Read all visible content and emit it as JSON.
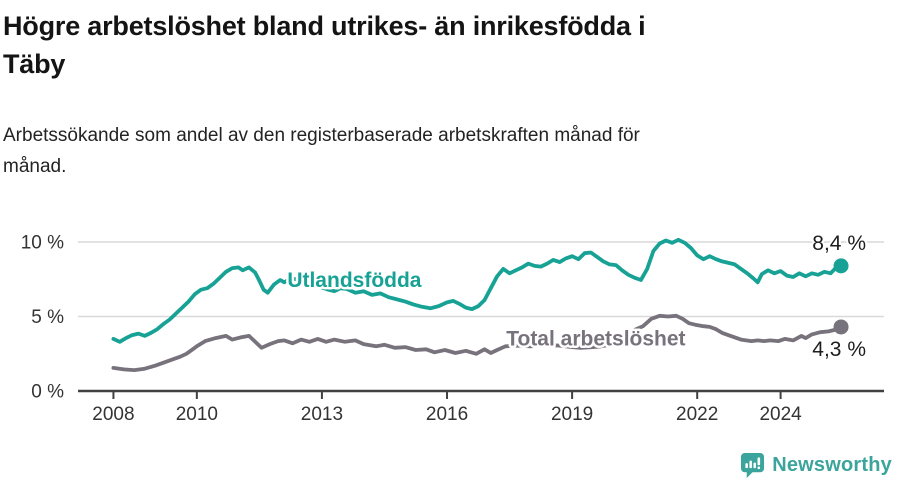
{
  "page": {
    "title": "Högre arbetslöshet bland utrikes- än inrikesfödda i\nTäby",
    "subtitle": "Arbetssökande som andel av den registerbaserade arbetskraften månad för\nmånad."
  },
  "footer": {
    "brand": "Newsworthy",
    "brand_color": "#3ba49d",
    "logo_icon": "bar-chart-speech-bubble-icon"
  },
  "chart_data": {
    "type": "line",
    "title": "Högre arbetslöshet bland utrikes- än inrikesfödda i Täby",
    "subtitle": "Arbetssökande som andel av den registerbaserade arbetskraften månad för månad.",
    "xlabel": "",
    "ylabel": "",
    "x_unit": "year (monthly data)",
    "grid": "horizontal",
    "legend_position": "inline-labels",
    "xlim": [
      2007.15,
      2026.48
    ],
    "ylim": [
      0,
      10.6
    ],
    "axis_color": "#414141",
    "gridline_color": "#d9d9d9",
    "tick_label_color": "#333333",
    "value_label_color": "#1d1d1d",
    "y_ticks": [
      {
        "v": 0,
        "label": "0 %"
      },
      {
        "v": 5,
        "label": "5 %"
      },
      {
        "v": 10,
        "label": "10 %"
      }
    ],
    "x_ticks": [
      {
        "v": 2008,
        "label": "2008"
      },
      {
        "v": 2010,
        "label": "2010"
      },
      {
        "v": 2013,
        "label": "2013"
      },
      {
        "v": 2016,
        "label": "2016"
      },
      {
        "v": 2019,
        "label": "2019"
      },
      {
        "v": 2022,
        "label": "2022"
      },
      {
        "v": 2024,
        "label": "2024"
      }
    ],
    "series": [
      {
        "id": "utlandsfodda",
        "name": "Utlandsfödda",
        "color": "#17a295",
        "end_label": "8,4 %",
        "last_value": 8.4,
        "end_label_above": true,
        "label_t": 2012.17,
        "label_v": 7.5,
        "points": [
          [
            2008.0,
            3.5
          ],
          [
            2008.15,
            3.3
          ],
          [
            2008.3,
            3.55
          ],
          [
            2008.45,
            3.75
          ],
          [
            2008.6,
            3.85
          ],
          [
            2008.75,
            3.7
          ],
          [
            2008.9,
            3.9
          ],
          [
            2009.05,
            4.15
          ],
          [
            2009.2,
            4.5
          ],
          [
            2009.35,
            4.8
          ],
          [
            2009.5,
            5.2
          ],
          [
            2009.65,
            5.6
          ],
          [
            2009.8,
            6.0
          ],
          [
            2009.95,
            6.5
          ],
          [
            2010.1,
            6.8
          ],
          [
            2010.25,
            6.9
          ],
          [
            2010.4,
            7.2
          ],
          [
            2010.55,
            7.6
          ],
          [
            2010.7,
            8.0
          ],
          [
            2010.85,
            8.25
          ],
          [
            2011.0,
            8.3
          ],
          [
            2011.1,
            8.1
          ],
          [
            2011.25,
            8.3
          ],
          [
            2011.4,
            7.95
          ],
          [
            2011.5,
            7.4
          ],
          [
            2011.6,
            6.8
          ],
          [
            2011.7,
            6.6
          ],
          [
            2011.85,
            7.15
          ],
          [
            2012.0,
            7.45
          ],
          [
            2012.1,
            7.3
          ],
          [
            2012.25,
            7.55
          ],
          [
            2012.4,
            7.5
          ],
          [
            2012.55,
            7.35
          ],
          [
            2012.7,
            7.2
          ],
          [
            2012.85,
            7.1
          ],
          [
            2013.0,
            6.95
          ],
          [
            2013.15,
            6.8
          ],
          [
            2013.3,
            6.7
          ],
          [
            2013.45,
            6.9
          ],
          [
            2013.6,
            6.85
          ],
          [
            2013.8,
            6.6
          ],
          [
            2014.0,
            6.7
          ],
          [
            2014.2,
            6.45
          ],
          [
            2014.4,
            6.55
          ],
          [
            2014.6,
            6.3
          ],
          [
            2014.8,
            6.15
          ],
          [
            2015.0,
            6.0
          ],
          [
            2015.2,
            5.8
          ],
          [
            2015.4,
            5.65
          ],
          [
            2015.6,
            5.55
          ],
          [
            2015.8,
            5.7
          ],
          [
            2016.0,
            5.95
          ],
          [
            2016.15,
            6.05
          ],
          [
            2016.3,
            5.85
          ],
          [
            2016.45,
            5.6
          ],
          [
            2016.6,
            5.5
          ],
          [
            2016.75,
            5.7
          ],
          [
            2016.9,
            6.1
          ],
          [
            2017.05,
            6.9
          ],
          [
            2017.2,
            7.7
          ],
          [
            2017.35,
            8.2
          ],
          [
            2017.5,
            7.9
          ],
          [
            2017.65,
            8.1
          ],
          [
            2017.8,
            8.3
          ],
          [
            2017.95,
            8.55
          ],
          [
            2018.1,
            8.4
          ],
          [
            2018.25,
            8.35
          ],
          [
            2018.4,
            8.55
          ],
          [
            2018.55,
            8.8
          ],
          [
            2018.7,
            8.65
          ],
          [
            2018.85,
            8.9
          ],
          [
            2019.0,
            9.05
          ],
          [
            2019.15,
            8.85
          ],
          [
            2019.3,
            9.25
          ],
          [
            2019.45,
            9.3
          ],
          [
            2019.6,
            9.0
          ],
          [
            2019.75,
            8.7
          ],
          [
            2019.9,
            8.5
          ],
          [
            2020.05,
            8.45
          ],
          [
            2020.2,
            8.1
          ],
          [
            2020.35,
            7.8
          ],
          [
            2020.5,
            7.6
          ],
          [
            2020.65,
            7.45
          ],
          [
            2020.8,
            8.2
          ],
          [
            2020.95,
            9.4
          ],
          [
            2021.1,
            9.9
          ],
          [
            2021.25,
            10.1
          ],
          [
            2021.4,
            9.95
          ],
          [
            2021.55,
            10.15
          ],
          [
            2021.7,
            9.95
          ],
          [
            2021.85,
            9.6
          ],
          [
            2022.0,
            9.1
          ],
          [
            2022.15,
            8.85
          ],
          [
            2022.3,
            9.05
          ],
          [
            2022.45,
            8.85
          ],
          [
            2022.6,
            8.7
          ],
          [
            2022.75,
            8.6
          ],
          [
            2022.9,
            8.5
          ],
          [
            2023.05,
            8.2
          ],
          [
            2023.2,
            7.9
          ],
          [
            2023.35,
            7.55
          ],
          [
            2023.45,
            7.3
          ],
          [
            2023.55,
            7.85
          ],
          [
            2023.7,
            8.1
          ],
          [
            2023.85,
            7.9
          ],
          [
            2024.0,
            8.05
          ],
          [
            2024.15,
            7.75
          ],
          [
            2024.3,
            7.65
          ],
          [
            2024.45,
            7.9
          ],
          [
            2024.6,
            7.7
          ],
          [
            2024.75,
            7.9
          ],
          [
            2024.9,
            7.8
          ],
          [
            2025.05,
            8.0
          ],
          [
            2025.2,
            7.9
          ],
          [
            2025.3,
            8.2
          ],
          [
            2025.45,
            8.4
          ]
        ]
      },
      {
        "id": "total",
        "name": "Total arbetslöshet",
        "color": "#77727b",
        "end_label": "4,3 %",
        "last_value": 4.3,
        "end_label_above": false,
        "label_t": 2017.42,
        "label_v": 3.55,
        "points": [
          [
            2008.0,
            1.55
          ],
          [
            2008.25,
            1.45
          ],
          [
            2008.5,
            1.4
          ],
          [
            2008.75,
            1.5
          ],
          [
            2009.0,
            1.7
          ],
          [
            2009.2,
            1.9
          ],
          [
            2009.4,
            2.1
          ],
          [
            2009.6,
            2.3
          ],
          [
            2009.75,
            2.5
          ],
          [
            2009.9,
            2.8
          ],
          [
            2010.0,
            3.0
          ],
          [
            2010.2,
            3.35
          ],
          [
            2010.45,
            3.55
          ],
          [
            2010.7,
            3.7
          ],
          [
            2010.85,
            3.45
          ],
          [
            2011.05,
            3.6
          ],
          [
            2011.25,
            3.7
          ],
          [
            2011.4,
            3.3
          ],
          [
            2011.55,
            2.9
          ],
          [
            2011.75,
            3.15
          ],
          [
            2011.95,
            3.35
          ],
          [
            2012.1,
            3.4
          ],
          [
            2012.3,
            3.2
          ],
          [
            2012.5,
            3.45
          ],
          [
            2012.7,
            3.3
          ],
          [
            2012.9,
            3.5
          ],
          [
            2013.1,
            3.3
          ],
          [
            2013.3,
            3.45
          ],
          [
            2013.55,
            3.3
          ],
          [
            2013.8,
            3.4
          ],
          [
            2014.0,
            3.15
          ],
          [
            2014.3,
            3.0
          ],
          [
            2014.5,
            3.1
          ],
          [
            2014.75,
            2.9
          ],
          [
            2015.0,
            2.95
          ],
          [
            2015.25,
            2.75
          ],
          [
            2015.5,
            2.8
          ],
          [
            2015.7,
            2.6
          ],
          [
            2015.95,
            2.75
          ],
          [
            2016.2,
            2.55
          ],
          [
            2016.45,
            2.7
          ],
          [
            2016.7,
            2.5
          ],
          [
            2016.9,
            2.8
          ],
          [
            2017.05,
            2.55
          ],
          [
            2017.2,
            2.75
          ],
          [
            2017.4,
            3.0
          ],
          [
            2017.7,
            3.05
          ],
          [
            2018.0,
            3.0
          ],
          [
            2018.35,
            3.1
          ],
          [
            2018.7,
            3.05
          ],
          [
            2019.0,
            2.95
          ],
          [
            2019.2,
            2.9
          ],
          [
            2019.5,
            2.95
          ],
          [
            2019.7,
            3.0
          ],
          [
            2019.9,
            3.1
          ],
          [
            2020.05,
            3.35
          ],
          [
            2020.3,
            3.75
          ],
          [
            2020.5,
            4.1
          ],
          [
            2020.7,
            4.35
          ],
          [
            2020.9,
            4.85
          ],
          [
            2021.1,
            5.05
          ],
          [
            2021.3,
            5.0
          ],
          [
            2021.5,
            5.05
          ],
          [
            2021.65,
            4.85
          ],
          [
            2021.8,
            4.55
          ],
          [
            2021.95,
            4.45
          ],
          [
            2022.15,
            4.35
          ],
          [
            2022.3,
            4.3
          ],
          [
            2022.45,
            4.15
          ],
          [
            2022.6,
            3.9
          ],
          [
            2022.8,
            3.7
          ],
          [
            2023.05,
            3.45
          ],
          [
            2023.3,
            3.35
          ],
          [
            2023.45,
            3.4
          ],
          [
            2023.6,
            3.35
          ],
          [
            2023.75,
            3.4
          ],
          [
            2023.95,
            3.35
          ],
          [
            2024.1,
            3.5
          ],
          [
            2024.3,
            3.4
          ],
          [
            2024.5,
            3.7
          ],
          [
            2024.6,
            3.55
          ],
          [
            2024.75,
            3.8
          ],
          [
            2024.95,
            3.95
          ],
          [
            2025.15,
            4.0
          ],
          [
            2025.3,
            4.1
          ],
          [
            2025.45,
            4.3
          ]
        ]
      }
    ]
  }
}
